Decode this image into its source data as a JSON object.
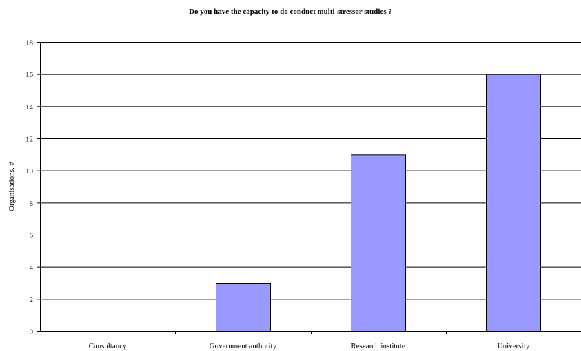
{
  "chart_data": {
    "type": "bar",
    "title": "Do you have  the capacity to do conduct multi-stressor studies ?",
    "xlabel": "",
    "ylabel": "Organisations, #",
    "categories": [
      "Consultancy",
      "Government authority",
      "Research institute",
      "University"
    ],
    "values": [
      0,
      3,
      11,
      16
    ],
    "ylim": [
      0,
      18
    ],
    "yticks": [
      "0",
      "2",
      "4",
      "6",
      "8",
      "10",
      "12",
      "14",
      "16",
      "18"
    ],
    "grid": true,
    "bar_color": "#9999ff",
    "legend": "none"
  }
}
